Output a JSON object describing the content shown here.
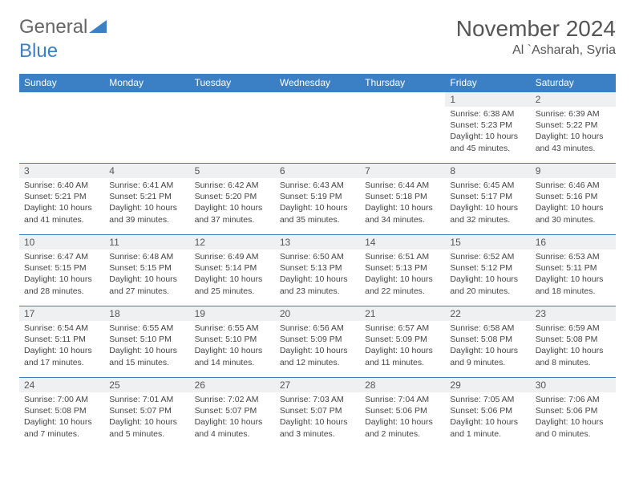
{
  "logo": {
    "text1": "General",
    "text2": "Blue"
  },
  "title": "November 2024",
  "location": "Al `Asharah, Syria",
  "colors": {
    "header_bg": "#3b7fc4",
    "daynum_bg": "#eef0f2",
    "border": "#3b7fc4"
  },
  "weekdays": [
    "Sunday",
    "Monday",
    "Tuesday",
    "Wednesday",
    "Thursday",
    "Friday",
    "Saturday"
  ],
  "weeks": [
    {
      "nums": [
        "",
        "",
        "",
        "",
        "",
        "1",
        "2"
      ],
      "cells": [
        "",
        "",
        "",
        "",
        "",
        "Sunrise: 6:38 AM\nSunset: 5:23 PM\nDaylight: 10 hours and 45 minutes.",
        "Sunrise: 6:39 AM\nSunset: 5:22 PM\nDaylight: 10 hours and 43 minutes."
      ]
    },
    {
      "nums": [
        "3",
        "4",
        "5",
        "6",
        "7",
        "8",
        "9"
      ],
      "cells": [
        "Sunrise: 6:40 AM\nSunset: 5:21 PM\nDaylight: 10 hours and 41 minutes.",
        "Sunrise: 6:41 AM\nSunset: 5:21 PM\nDaylight: 10 hours and 39 minutes.",
        "Sunrise: 6:42 AM\nSunset: 5:20 PM\nDaylight: 10 hours and 37 minutes.",
        "Sunrise: 6:43 AM\nSunset: 5:19 PM\nDaylight: 10 hours and 35 minutes.",
        "Sunrise: 6:44 AM\nSunset: 5:18 PM\nDaylight: 10 hours and 34 minutes.",
        "Sunrise: 6:45 AM\nSunset: 5:17 PM\nDaylight: 10 hours and 32 minutes.",
        "Sunrise: 6:46 AM\nSunset: 5:16 PM\nDaylight: 10 hours and 30 minutes."
      ]
    },
    {
      "nums": [
        "10",
        "11",
        "12",
        "13",
        "14",
        "15",
        "16"
      ],
      "cells": [
        "Sunrise: 6:47 AM\nSunset: 5:15 PM\nDaylight: 10 hours and 28 minutes.",
        "Sunrise: 6:48 AM\nSunset: 5:15 PM\nDaylight: 10 hours and 27 minutes.",
        "Sunrise: 6:49 AM\nSunset: 5:14 PM\nDaylight: 10 hours and 25 minutes.",
        "Sunrise: 6:50 AM\nSunset: 5:13 PM\nDaylight: 10 hours and 23 minutes.",
        "Sunrise: 6:51 AM\nSunset: 5:13 PM\nDaylight: 10 hours and 22 minutes.",
        "Sunrise: 6:52 AM\nSunset: 5:12 PM\nDaylight: 10 hours and 20 minutes.",
        "Sunrise: 6:53 AM\nSunset: 5:11 PM\nDaylight: 10 hours and 18 minutes."
      ]
    },
    {
      "nums": [
        "17",
        "18",
        "19",
        "20",
        "21",
        "22",
        "23"
      ],
      "cells": [
        "Sunrise: 6:54 AM\nSunset: 5:11 PM\nDaylight: 10 hours and 17 minutes.",
        "Sunrise: 6:55 AM\nSunset: 5:10 PM\nDaylight: 10 hours and 15 minutes.",
        "Sunrise: 6:55 AM\nSunset: 5:10 PM\nDaylight: 10 hours and 14 minutes.",
        "Sunrise: 6:56 AM\nSunset: 5:09 PM\nDaylight: 10 hours and 12 minutes.",
        "Sunrise: 6:57 AM\nSunset: 5:09 PM\nDaylight: 10 hours and 11 minutes.",
        "Sunrise: 6:58 AM\nSunset: 5:08 PM\nDaylight: 10 hours and 9 minutes.",
        "Sunrise: 6:59 AM\nSunset: 5:08 PM\nDaylight: 10 hours and 8 minutes."
      ]
    },
    {
      "nums": [
        "24",
        "25",
        "26",
        "27",
        "28",
        "29",
        "30"
      ],
      "cells": [
        "Sunrise: 7:00 AM\nSunset: 5:08 PM\nDaylight: 10 hours and 7 minutes.",
        "Sunrise: 7:01 AM\nSunset: 5:07 PM\nDaylight: 10 hours and 5 minutes.",
        "Sunrise: 7:02 AM\nSunset: 5:07 PM\nDaylight: 10 hours and 4 minutes.",
        "Sunrise: 7:03 AM\nSunset: 5:07 PM\nDaylight: 10 hours and 3 minutes.",
        "Sunrise: 7:04 AM\nSunset: 5:06 PM\nDaylight: 10 hours and 2 minutes.",
        "Sunrise: 7:05 AM\nSunset: 5:06 PM\nDaylight: 10 hours and 1 minute.",
        "Sunrise: 7:06 AM\nSunset: 5:06 PM\nDaylight: 10 hours and 0 minutes."
      ]
    }
  ]
}
